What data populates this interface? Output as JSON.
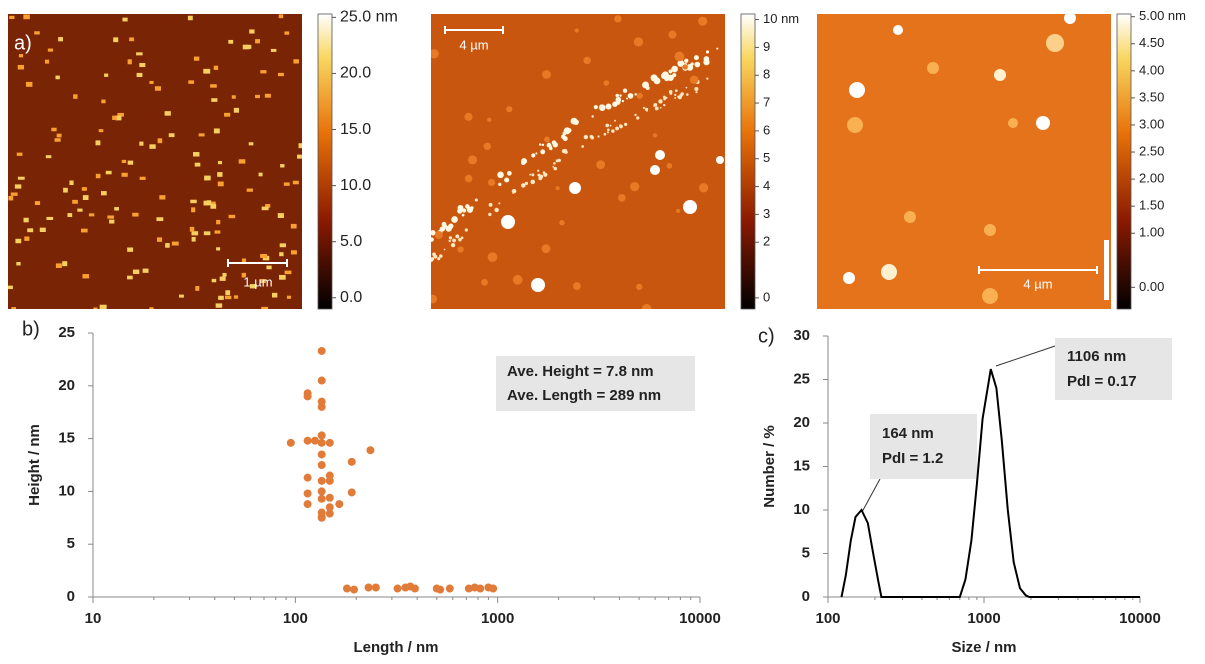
{
  "afm_panels": [
    {
      "panel_label": "a)",
      "scale_bar": "1 µm",
      "colorbar": {
        "lim": [
          -1,
          25.3
        ],
        "ticks": [
          {
            "value": 25,
            "label": "25.0 nm"
          },
          {
            "value": 20,
            "label": "20.0"
          },
          {
            "value": 15,
            "label": "15.0"
          },
          {
            "value": 10,
            "label": "10.0"
          },
          {
            "value": 5,
            "label": "5.0"
          },
          {
            "value": 0,
            "label": "0.0"
          }
        ]
      }
    },
    {
      "scale_bar": "4 µm",
      "colorbar": {
        "lim": [
          -0.4,
          10.2
        ],
        "ticks": [
          {
            "value": 10,
            "label": "10 nm"
          },
          9,
          8,
          7,
          6,
          5,
          4,
          3,
          2,
          0
        ]
      }
    },
    {
      "scale_bar": "4 µm",
      "colorbar": {
        "lim": [
          -0.4,
          5.05
        ],
        "ticks": [
          {
            "value": 5,
            "label": "5.00 nm"
          },
          {
            "value": 4.5,
            "label": "4.50"
          },
          {
            "value": 4,
            "label": "4.00"
          },
          {
            "value": 3.5,
            "label": "3.50"
          },
          {
            "value": 3,
            "label": "3.00"
          },
          {
            "value": 2.5,
            "label": "2.50"
          },
          {
            "value": 2,
            "label": "2.00"
          },
          {
            "value": 1.5,
            "label": "1.50"
          },
          {
            "value": 1,
            "label": "1.00"
          },
          {
            "value": 0,
            "label": "0.00"
          }
        ]
      }
    }
  ],
  "chart_data": [
    {
      "type": "scatter",
      "panel_label": "b)",
      "x_label": "Length / nm",
      "y_label": "Height / nm",
      "annotations": [
        "Ave. Height = 7.8 nm",
        "Ave. Length = 289 nm"
      ],
      "log_x": true,
      "grid": false,
      "color": "#e07b39",
      "xlim": [
        10,
        10000
      ],
      "xticks": [
        10,
        100,
        1000,
        10000
      ],
      "ylim": [
        0,
        25
      ],
      "yticks": [
        0,
        5,
        10,
        15,
        20,
        25
      ],
      "x": [
        115,
        115,
        115,
        115,
        115,
        115,
        95,
        125,
        135,
        135,
        135,
        135,
        135,
        135,
        135,
        135,
        135,
        135,
        135,
        135,
        135,
        135,
        148,
        148,
        148,
        148,
        148,
        148,
        165,
        190,
        190,
        235,
        180,
        195,
        230,
        250,
        320,
        350,
        370,
        390,
        500,
        520,
        580,
        720,
        770,
        820,
        900,
        950
      ],
      "values": [
        19.3,
        19.0,
        14.8,
        11.3,
        9.8,
        8.8,
        14.6,
        14.8,
        23.3,
        20.5,
        18.5,
        18.0,
        15.3,
        14.6,
        13.5,
        12.5,
        11.0,
        10.0,
        9.3,
        8.0,
        7.6,
        7.5,
        14.6,
        11.5,
        11.0,
        9.4,
        8.5,
        7.9,
        8.8,
        12.8,
        9.9,
        13.9,
        0.8,
        0.7,
        0.9,
        0.9,
        0.8,
        0.9,
        1.0,
        0.8,
        0.8,
        0.7,
        0.8,
        0.8,
        0.9,
        0.8,
        0.9,
        0.8
      ]
    },
    {
      "type": "line",
      "panel_label": "c)",
      "x_label": "Size / nm",
      "y_label": "Number / %",
      "annotations": [
        "164 nm",
        "PdI = 1.2",
        "1106 nm",
        "PdI = 0.17"
      ],
      "log_x": true,
      "grid": false,
      "color": "#000000",
      "xlim": [
        100,
        10000
      ],
      "xticks": [
        100,
        1000,
        10000
      ],
      "ylim": [
        0,
        30
      ],
      "yticks": [
        0,
        5,
        10,
        15,
        20,
        25,
        30
      ],
      "x": [
        122,
        130,
        140,
        150,
        164,
        180,
        195,
        210,
        220,
        700,
        760,
        830,
        900,
        980,
        1106,
        1200,
        1300,
        1420,
        1550,
        1700,
        1850,
        1950,
        10000
      ],
      "values": [
        0,
        2.5,
        6.5,
        9.2,
        10,
        8.5,
        5,
        1.8,
        0,
        0,
        2,
        6.5,
        13,
        20.5,
        26.2,
        24,
        18,
        10,
        4,
        1,
        0.2,
        0,
        0
      ]
    }
  ]
}
